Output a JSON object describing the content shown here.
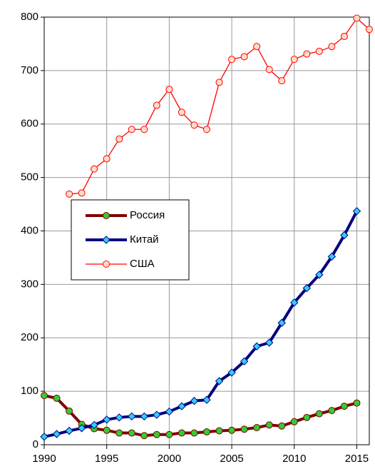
{
  "chart_data": {
    "type": "line",
    "x": [
      1990,
      1991,
      1992,
      1993,
      1994,
      1995,
      1996,
      1997,
      1998,
      1999,
      2000,
      2001,
      2002,
      2003,
      2004,
      2005,
      2006,
      2007,
      2008,
      2009,
      2010,
      2011,
      2012,
      2013,
      2014,
      2015,
      2016
    ],
    "series": [
      {
        "name": "Россия",
        "color": "#800000",
        "marker": "circle",
        "marker_color": "#33cc33",
        "line_width": 4,
        "values": [
          92,
          87,
          63,
          38,
          30,
          27,
          22,
          22,
          17,
          19,
          19,
          22,
          22,
          24,
          26,
          27,
          29,
          32,
          37,
          35,
          43,
          51,
          58,
          64,
          72,
          78,
          null
        ]
      },
      {
        "name": "Китай",
        "color": "#000080",
        "marker": "diamond",
        "marker_color": "#33ccff",
        "line_width": 4,
        "values": [
          15,
          20,
          26,
          31,
          37,
          47,
          51,
          53,
          53,
          56,
          62,
          72,
          82,
          84,
          119,
          135,
          156,
          184,
          191,
          228,
          266,
          293,
          318,
          352,
          392,
          437,
          null
        ]
      },
      {
        "name": "США",
        "color": "#ff0000",
        "marker": "circle",
        "marker_color": "#ffdcc8",
        "line_width": 1.3,
        "values": [
          null,
          null,
          469,
          471,
          516,
          535,
          572,
          590,
          590,
          635,
          665,
          622,
          598,
          590,
          678,
          721,
          726,
          745,
          702,
          681,
          721,
          731,
          736,
          745,
          764,
          798,
          777
        ]
      }
    ],
    "xlim": [
      1990,
      2016
    ],
    "xticks": [
      1990,
      1995,
      2000,
      2005,
      2010,
      2015
    ],
    "ylim": [
      0,
      800
    ],
    "yticks": [
      0,
      100,
      200,
      300,
      400,
      500,
      600,
      700,
      800
    ],
    "grid": true,
    "legend": "left"
  }
}
